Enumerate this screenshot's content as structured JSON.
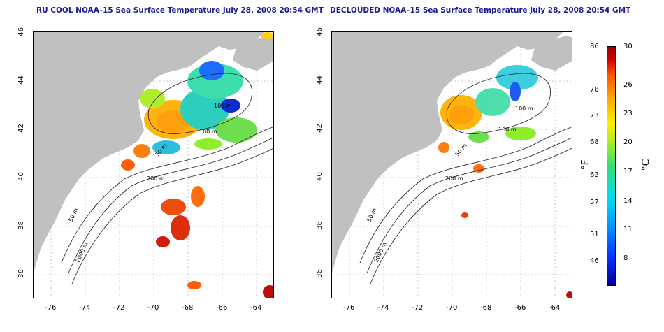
{
  "panels": [
    {
      "title": "RU COOL NOAA–15 Sea Surface Temperature July 28, 2008 20:54 GMT"
    },
    {
      "title": "DECLOUDED NOAA–15 Sea Surface Temperature July 28, 2008 20:54 GMT"
    }
  ],
  "axes": {
    "x_ticks": [
      "-76",
      "-74",
      "-72",
      "-70",
      "-68",
      "-66",
      "-64"
    ],
    "y_ticks": [
      "36",
      "38",
      "40",
      "42",
      "44",
      "46"
    ],
    "lon_range": [
      -77,
      -63
    ],
    "lat_range": [
      35,
      46
    ]
  },
  "contours": {
    "left": [
      "100 m",
      "50 m",
      "200 m",
      "50 m",
      "2000 m",
      "100 m"
    ],
    "right": [
      "100 m",
      "50 m",
      "200 m",
      "50 m",
      "2000 m",
      "100 m"
    ]
  },
  "colorbar": {
    "fahrenheit": [
      "86",
      "78",
      "73",
      "68",
      "62",
      "57",
      "51",
      "46"
    ],
    "celsius": [
      "30",
      "26",
      "23",
      "20",
      "17",
      "14",
      "11",
      "8"
    ],
    "unit_f": "°F",
    "unit_c": "°C"
  },
  "colors": {
    "land": "#c0c0c0",
    "ocean": "#ffffff",
    "title": "#1a1a9a"
  }
}
